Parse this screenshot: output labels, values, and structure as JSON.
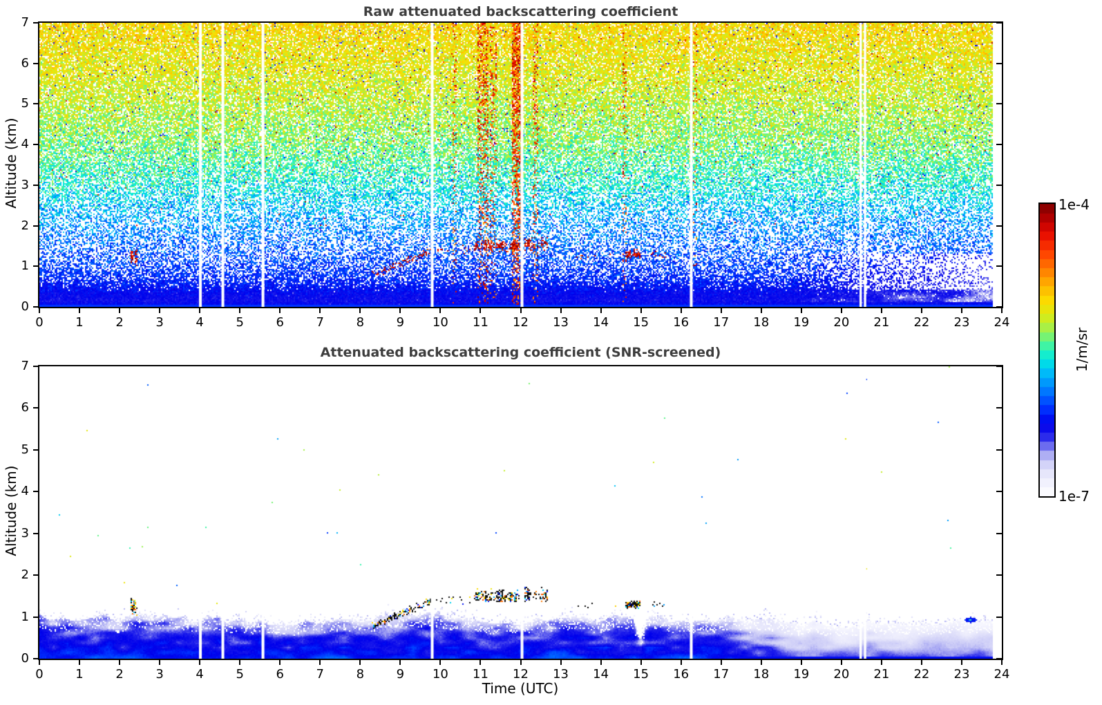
{
  "figure": {
    "background": "#ffffff",
    "title_color": "#3d3d3d",
    "axis_color": "#000000"
  },
  "colorbar": {
    "label": "1/m/sr",
    "max_label": "1e-4",
    "min_label": "1e-7",
    "orientation": "vertical",
    "scale": "log",
    "steps": 32,
    "colormap_stops": [
      [
        0.0,
        255,
        255,
        255
      ],
      [
        0.04,
        244,
        244,
        254
      ],
      [
        0.08,
        230,
        230,
        251
      ],
      [
        0.12,
        205,
        205,
        247
      ],
      [
        0.15,
        160,
        160,
        242
      ],
      [
        0.18,
        90,
        90,
        238
      ],
      [
        0.21,
        30,
        30,
        235
      ],
      [
        0.25,
        0,
        0,
        235
      ],
      [
        0.3,
        0,
        50,
        255
      ],
      [
        0.36,
        0,
        120,
        255
      ],
      [
        0.42,
        0,
        185,
        250
      ],
      [
        0.47,
        0,
        235,
        225
      ],
      [
        0.52,
        70,
        245,
        160
      ],
      [
        0.57,
        160,
        242,
        80
      ],
      [
        0.62,
        220,
        235,
        20
      ],
      [
        0.67,
        252,
        220,
        0
      ],
      [
        0.72,
        255,
        180,
        0
      ],
      [
        0.78,
        255,
        120,
        0
      ],
      [
        0.84,
        255,
        60,
        0
      ],
      [
        0.9,
        230,
        10,
        0
      ],
      [
        0.95,
        180,
        0,
        0
      ],
      [
        1.0,
        127,
        0,
        0
      ]
    ]
  },
  "chart_data": [
    {
      "type": "heatmap",
      "panel": "raw",
      "title": "Raw attenuated backscattering coefficient",
      "xlabel": "",
      "ylabel": "Altitude (km)",
      "units": "1/m/sr",
      "xlim": [
        0,
        24
      ],
      "ylim": [
        0,
        7
      ],
      "xticks": [
        0,
        1,
        2,
        3,
        4,
        5,
        6,
        7,
        8,
        9,
        10,
        11,
        12,
        13,
        14,
        15,
        16,
        17,
        18,
        19,
        20,
        21,
        22,
        23,
        24
      ],
      "yticks": [
        0,
        1,
        2,
        3,
        4,
        5,
        6,
        7
      ],
      "value_range": [
        "1e-7",
        "1e-4"
      ],
      "seed": 7,
      "noise_profile": [
        [
          0.0,
          0.27,
          0.04,
          0.0
        ],
        [
          0.15,
          0.23,
          0.03,
          0.0
        ],
        [
          0.35,
          0.25,
          0.04,
          0.0
        ],
        [
          0.5,
          0.27,
          0.05,
          0.1
        ],
        [
          0.7,
          0.29,
          0.05,
          0.28
        ],
        [
          1.0,
          0.31,
          0.06,
          0.42
        ],
        [
          1.5,
          0.34,
          0.08,
          0.55
        ],
        [
          2.2,
          0.4,
          0.09,
          0.52
        ],
        [
          3.0,
          0.48,
          0.1,
          0.4
        ],
        [
          4.0,
          0.55,
          0.1,
          0.28
        ],
        [
          5.5,
          0.62,
          0.09,
          0.2
        ],
        [
          7.0,
          0.67,
          0.09,
          0.14
        ]
      ],
      "streaks": [
        {
          "t": 10.35,
          "w": 0.04,
          "s": 0.15
        },
        {
          "t": 11.05,
          "w": 0.14,
          "s": 0.45
        },
        {
          "t": 11.32,
          "w": 0.08,
          "s": 0.3
        },
        {
          "t": 11.9,
          "w": 0.11,
          "s": 0.8
        },
        {
          "t": 12.02,
          "w": 0.05,
          "s": 0.45
        },
        {
          "t": 12.38,
          "w": 0.07,
          "s": 0.28
        },
        {
          "t": 14.6,
          "w": 0.05,
          "s": 0.2
        },
        {
          "t": 16.35,
          "w": 0.04,
          "s": 0.16
        }
      ],
      "features": [
        {
          "kind": "plume",
          "t0": 2.28,
          "t1": 2.44,
          "a0": 1.0,
          "a1": 1.48,
          "density": 0.5
        },
        {
          "kind": "rising",
          "t0": 8.3,
          "t1": 9.75,
          "a0": 0.78,
          "a1": 1.38,
          "density": 0.3
        },
        {
          "kind": "dots",
          "t0": 9.9,
          "t1": 10.8,
          "a0": 1.3,
          "a1": 1.52,
          "density": 0.07
        },
        {
          "kind": "cloud",
          "t0": 10.85,
          "t1": 11.97,
          "a0": 1.33,
          "a1": 1.68,
          "density": 0.5
        },
        {
          "kind": "cloud",
          "t0": 12.1,
          "t1": 12.68,
          "a0": 1.36,
          "a1": 1.72,
          "density": 0.42
        },
        {
          "kind": "dots",
          "t0": 13.3,
          "t1": 14.45,
          "a0": 1.18,
          "a1": 1.33,
          "density": 0.06
        },
        {
          "kind": "cloud",
          "t0": 14.62,
          "t1": 14.97,
          "a0": 1.18,
          "a1": 1.42,
          "density": 0.65
        },
        {
          "kind": "dots",
          "t0": 15.25,
          "t1": 15.62,
          "a0": 1.22,
          "a1": 1.4,
          "density": 0.12
        }
      ],
      "data_gaps_utc": [
        [
          3.98,
          4.05
        ],
        [
          4.54,
          4.61
        ],
        [
          5.54,
          5.61
        ],
        [
          9.76,
          9.83
        ],
        [
          12.0,
          12.07
        ],
        [
          16.22,
          16.29
        ],
        [
          20.45,
          20.51
        ],
        [
          20.56,
          20.62
        ]
      ],
      "data_end_utc": 23.78,
      "right_fade": {
        "start_utc": 18.5,
        "full_utc": 23.5,
        "below_km": 1.3
      }
    },
    {
      "type": "heatmap",
      "panel": "snr_screened",
      "title": "Attenuated backscattering coefficient (SNR-screened)",
      "xlabel": "Time (UTC)",
      "ylabel": "Altitude (km)",
      "units": "1/m/sr",
      "xlim": [
        0,
        24
      ],
      "ylim": [
        0,
        7
      ],
      "xticks": [
        0,
        1,
        2,
        3,
        4,
        5,
        6,
        7,
        8,
        9,
        10,
        11,
        12,
        13,
        14,
        15,
        16,
        17,
        18,
        19,
        20,
        21,
        22,
        23,
        24
      ],
      "yticks": [
        0,
        1,
        2,
        3,
        4,
        5,
        6,
        7
      ],
      "value_range": [
        "1e-7",
        "1e-4"
      ],
      "seed": 11,
      "layer_top_utc_km": [
        [
          0,
          1.02
        ],
        [
          1,
          0.92
        ],
        [
          1.5,
          1.0
        ],
        [
          2,
          0.95
        ],
        [
          2.4,
          1.05
        ],
        [
          3,
          0.95
        ],
        [
          4,
          0.9
        ],
        [
          5,
          0.93
        ],
        [
          6,
          0.86
        ],
        [
          7,
          0.84
        ],
        [
          8,
          0.9
        ],
        [
          8.6,
          1.02
        ],
        [
          9.3,
          1.12
        ],
        [
          9.8,
          1.1
        ],
        [
          10.3,
          1.0
        ],
        [
          11,
          0.92
        ],
        [
          12,
          0.88
        ],
        [
          13,
          0.92
        ],
        [
          14,
          0.94
        ],
        [
          14.8,
          1.0
        ],
        [
          15.0,
          0.45
        ],
        [
          15.2,
          0.95
        ],
        [
          16,
          0.95
        ],
        [
          17,
          0.92
        ],
        [
          18,
          0.88
        ],
        [
          19,
          0.84
        ],
        [
          20,
          0.8
        ],
        [
          21,
          0.84
        ],
        [
          22,
          0.8
        ],
        [
          23,
          0.9
        ],
        [
          23.78,
          0.85
        ]
      ],
      "pale_fade": {
        "start_utc": 16.5,
        "full_utc": 19.0,
        "amount": 0.72
      },
      "speck_probability": 0.0004,
      "features": [
        {
          "kind": "plume",
          "t0": 2.28,
          "t1": 2.44,
          "a0": 1.0,
          "a1": 1.48,
          "density": 0.55
        },
        {
          "kind": "rising",
          "t0": 8.3,
          "t1": 9.75,
          "a0": 0.78,
          "a1": 1.38,
          "density": 0.45
        },
        {
          "kind": "dots",
          "t0": 9.9,
          "t1": 10.8,
          "a0": 1.3,
          "a1": 1.52,
          "density": 0.07
        },
        {
          "kind": "cloud",
          "t0": 10.85,
          "t1": 11.97,
          "a0": 1.33,
          "a1": 1.68,
          "density": 0.5
        },
        {
          "kind": "cloud",
          "t0": 12.1,
          "t1": 12.68,
          "a0": 1.36,
          "a1": 1.72,
          "density": 0.42
        },
        {
          "kind": "dots",
          "t0": 13.3,
          "t1": 14.45,
          "a0": 1.18,
          "a1": 1.33,
          "density": 0.06
        },
        {
          "kind": "cloud",
          "t0": 14.62,
          "t1": 14.97,
          "a0": 1.18,
          "a1": 1.42,
          "density": 0.7
        },
        {
          "kind": "dots",
          "t0": 15.25,
          "t1": 15.62,
          "a0": 1.22,
          "a1": 1.4,
          "density": 0.15
        }
      ],
      "isolated_dots": [
        {
          "t": 12.2,
          "alt": 6.6,
          "kind": "speck"
        },
        {
          "t": 2.36,
          "alt": 1.4,
          "kind": "fleck"
        },
        {
          "t": 23.2,
          "alt": 0.95,
          "kind": "blob"
        }
      ],
      "data_gaps_utc": [
        [
          3.98,
          4.05
        ],
        [
          4.54,
          4.61
        ],
        [
          5.54,
          5.61
        ],
        [
          9.76,
          9.83
        ],
        [
          12.0,
          12.07
        ],
        [
          16.22,
          16.29
        ],
        [
          20.45,
          20.51
        ],
        [
          20.56,
          20.62
        ]
      ],
      "data_end_utc": 23.78
    }
  ]
}
